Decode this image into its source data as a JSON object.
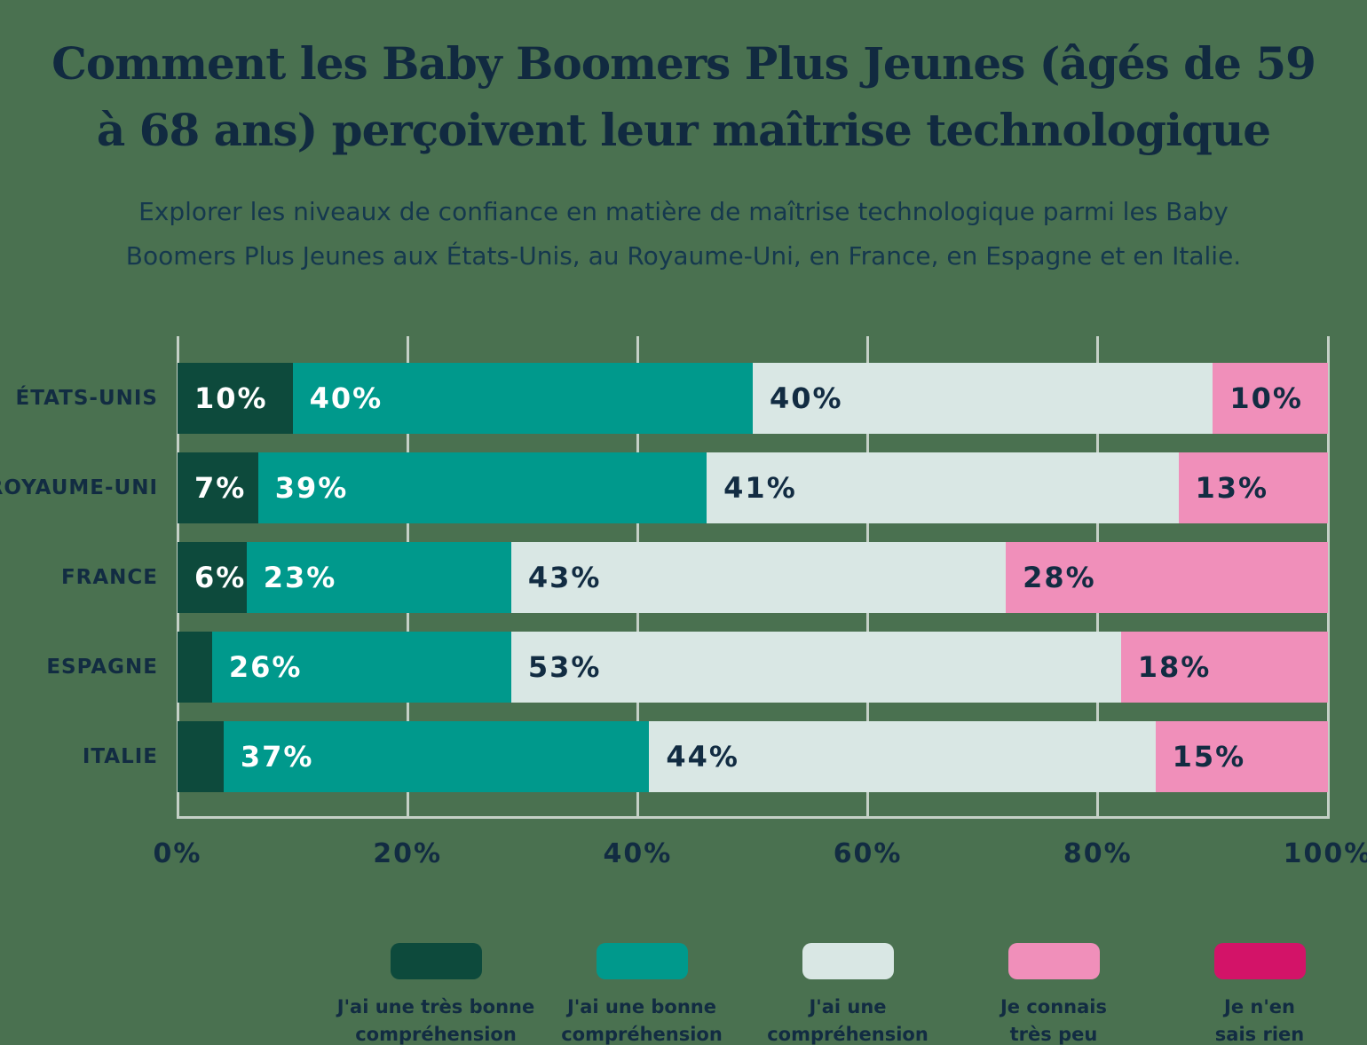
{
  "header": {
    "title": "Comment les Baby Boomers Plus Jeunes (âgés de 59\nà 68 ans) perçoivent leur maîtrise technologique",
    "subtitle": "Explorer les niveaux de confiance en matière de maîtrise technologique parmi les Baby\nBoomers Plus Jeunes aux États-Unis, au Royaume-Uni, en France, en Espagne et en Italie."
  },
  "colors": {
    "background": "#4a7150",
    "grid": "#c4d0c6",
    "title_text": "#112a40",
    "subtitle_text": "#15384e",
    "axis_text": "#122c42"
  },
  "chart_data": {
    "type": "bar",
    "orientation": "horizontal-stacked",
    "title": "Comment les Baby Boomers Plus Jeunes (âgés de 59 à 68 ans) perçoivent leur maîtrise technologique",
    "categories": [
      "ÉTATS-UNIS",
      "ROYAUME-UNI",
      "FRANCE",
      "ESPAGNE",
      "ITALIE"
    ],
    "series": [
      {
        "name": "J'ai une très bonne compréhension",
        "color": "#0d4a3c",
        "text_color": "#ffffff",
        "values": [
          10,
          7,
          6,
          3,
          4
        ],
        "value_labels": [
          "10%",
          "7%",
          "6%",
          "",
          ""
        ]
      },
      {
        "name": "J'ai une bonne compréhension",
        "color": "#00998c",
        "text_color": "#ffffff",
        "values": [
          40,
          39,
          23,
          26,
          37
        ],
        "value_labels": [
          "40%",
          "39%",
          "23%",
          "26%",
          "37%"
        ]
      },
      {
        "name": "J'ai une compréhension de base",
        "color": "#d9e7e4",
        "text_color": "#122c42",
        "values": [
          40,
          41,
          43,
          53,
          44
        ],
        "value_labels": [
          "40%",
          "41%",
          "43%",
          "53%",
          "44%"
        ]
      },
      {
        "name": "Je connais très peu",
        "color": "#f08fba",
        "text_color": "#122c42",
        "values": [
          10,
          13,
          28,
          18,
          15
        ],
        "value_labels": [
          "10%",
          "13%",
          "28%",
          "18%",
          "15%"
        ]
      },
      {
        "name": "Je n'en sais rien",
        "color": "#d31368",
        "text_color": "#ffffff",
        "values": [
          0,
          0,
          0,
          0,
          0
        ],
        "value_labels": [
          "",
          "",
          "",
          "",
          ""
        ]
      }
    ],
    "legend_labels_wrapped": [
      "J'ai une très bonne\ncompréhension",
      "J'ai une bonne\ncompréhension",
      "J'ai une compréhension\nde base",
      "Je connais\ntrès peu",
      "Je n'en\nsais rien"
    ],
    "x_ticks": [
      "0%",
      "20%",
      "40%",
      "60%",
      "80%",
      "100%"
    ],
    "xlim": [
      0,
      100
    ],
    "grid": true,
    "legend_position": "bottom"
  }
}
